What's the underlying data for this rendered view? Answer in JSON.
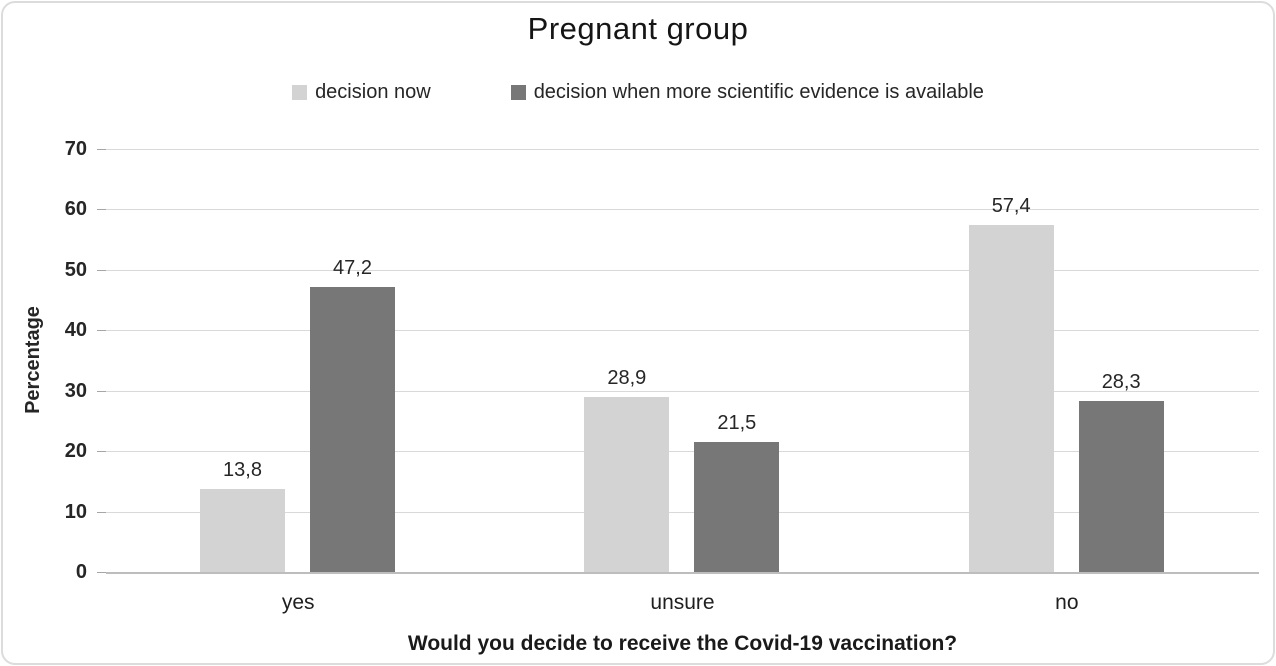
{
  "chart_data": {
    "type": "bar",
    "title": "Pregnant group",
    "categories": [
      "yes",
      "unsure",
      "no"
    ],
    "series": [
      {
        "name": "decision now",
        "color": "#d3d3d3",
        "values": [
          13.8,
          28.9,
          57.4
        ],
        "labels": [
          "13,8",
          "28,9",
          "57,4"
        ]
      },
      {
        "name": "decision when more scientific evidence is available",
        "color": "#777777",
        "values": [
          47.2,
          21.5,
          28.3
        ],
        "labels": [
          "47,2",
          "21,5",
          "28,3"
        ]
      }
    ],
    "xlabel": "Would you decide to receive the Covid-19 vaccination?",
    "ylabel": "Percentage",
    "ylim": [
      0,
      70
    ],
    "yticks": [
      0,
      10,
      20,
      30,
      40,
      50,
      60,
      70
    ],
    "grid": true,
    "legend_position": "top",
    "decimal_separator": ","
  },
  "style": {
    "gridline_color": "#d9d9d9",
    "baseline_color": "#bdbdbd",
    "text_color": "#262626",
    "background": "#ffffff"
  }
}
